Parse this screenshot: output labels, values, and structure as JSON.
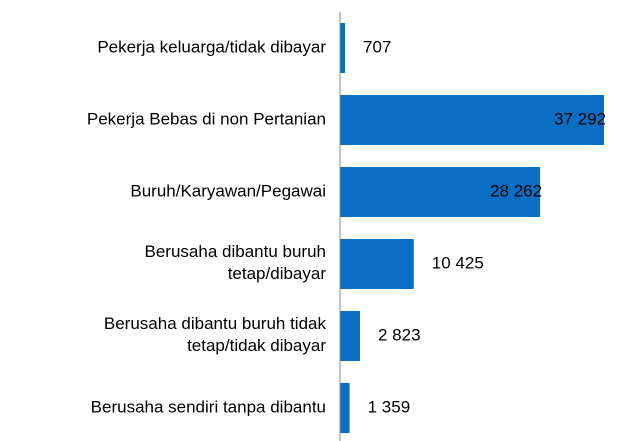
{
  "chart_data": {
    "type": "bar",
    "orientation": "horizontal",
    "categories": [
      "Pekerja keluarga/tidak dibayar",
      "Pekerja Bebas di non Pertanian",
      "Buruh/Karyawan/Pegawai",
      "Berusaha dibantu buruh\ntetap/dibayar",
      "Berusaha dibantu buruh tidak\ntetap/tidak dibayar",
      "Berusaha sendiri tanpa dibantu"
    ],
    "values": [
      707,
      37292,
      28262,
      10425,
      2823,
      1359
    ],
    "value_labels": [
      "707",
      "37 292",
      "28 262",
      "10 425",
      "2 823",
      "1 359"
    ],
    "color": "#0a6fc4"
  }
}
